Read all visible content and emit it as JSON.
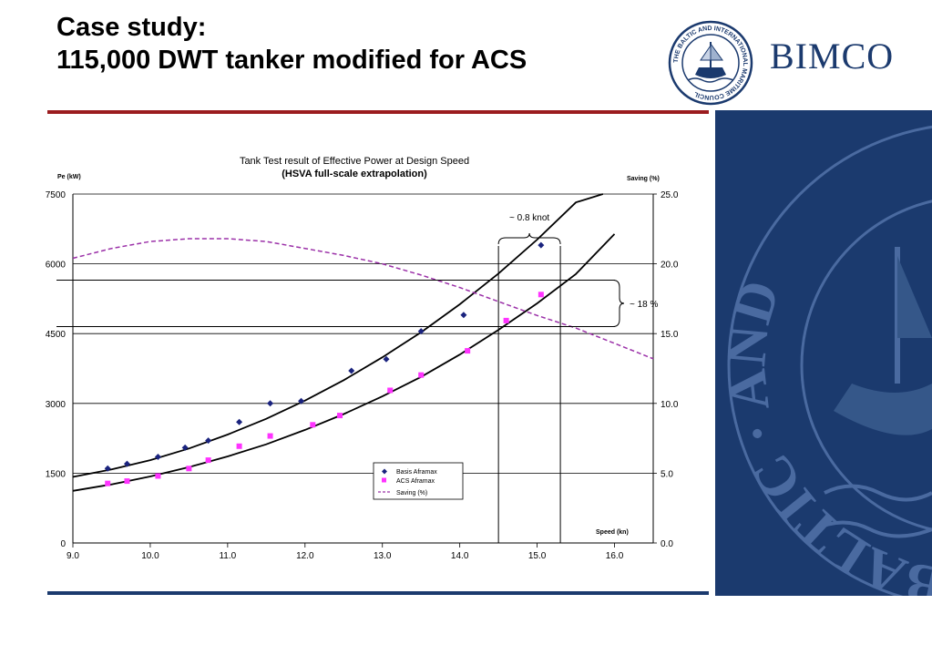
{
  "slide": {
    "title_line1": "Case study:",
    "title_line2": "115,000 DWT tanker modified for ACS"
  },
  "logo": {
    "text": "BIMCO",
    "seal_text": "THE BALTIC AND INTERNATIONAL MARITIME COUNCIL"
  },
  "side_panel": {
    "watermark_text": "THE · BALTIC · AND"
  },
  "colors": {
    "title_rule": "#9b1c1f",
    "brand_navy": "#1b3a6e",
    "basis_marker": "#1a237e",
    "acs_marker": "#ff33ff",
    "saving_line": "#9b30a8"
  },
  "chart_data": {
    "type": "line",
    "title": "Tank Test result of Effective Power at Design Speed",
    "subtitle": "(HSVA full-scale extrapolation)",
    "xlabel": "Speed (kn)",
    "ylabel_left": "Pe (kW)",
    "ylabel_right": "Saving (%)",
    "xlim": [
      9.0,
      16.5
    ],
    "ylim_left": [
      0,
      7500
    ],
    "ylim_right": [
      0,
      25
    ],
    "x_ticks": [
      9.0,
      10.0,
      11.0,
      12.0,
      13.0,
      14.0,
      15.0,
      16.0
    ],
    "x_tick_labels": [
      "9.0",
      "10.0",
      "11.0",
      "12.0",
      "13.0",
      "14.0",
      "15.0",
      "16.0"
    ],
    "y_left_ticks": [
      0,
      1500,
      3000,
      4500,
      6000,
      7500
    ],
    "y_left_tick_labels": [
      "0",
      "1500",
      "3000",
      "4500",
      "6000",
      "7500"
    ],
    "y_right_ticks": [
      0,
      5,
      10,
      15,
      20,
      25
    ],
    "y_right_tick_labels": [
      "0.0",
      "5.0",
      "10.0",
      "15.0",
      "20.0",
      "25.0"
    ],
    "grid": "horizontal",
    "legend_position": "bottom-center",
    "series": [
      {
        "name": "Basis Aframax",
        "kind": "scatter",
        "marker": "diamond",
        "axis": "left",
        "x": [
          9.45,
          9.7,
          10.1,
          10.45,
          10.75,
          11.15,
          11.55,
          11.95,
          12.6,
          13.05,
          13.5,
          14.05,
          15.05
        ],
        "y": [
          1600,
          1700,
          1850,
          2050,
          2200,
          2600,
          3000,
          3050,
          3700,
          3950,
          4550,
          4900,
          6400
        ]
      },
      {
        "name": "ACS Aframax",
        "kind": "scatter",
        "marker": "square",
        "axis": "left",
        "x": [
          9.45,
          9.7,
          10.1,
          10.5,
          10.75,
          11.15,
          11.55,
          12.1,
          12.45,
          13.1,
          13.5,
          14.1,
          14.6,
          15.05
        ],
        "y": [
          1280,
          1330,
          1440,
          1600,
          1780,
          2080,
          2300,
          2540,
          2740,
          3280,
          3610,
          4130,
          4780,
          5340
        ]
      },
      {
        "name": "",
        "kind": "fit",
        "axis": "left",
        "x": [
          9.0,
          9.5,
          10.0,
          10.5,
          11.0,
          11.5,
          12.0,
          12.5,
          13.0,
          13.5,
          14.0,
          14.5,
          15.0,
          15.5,
          15.85
        ],
        "y": [
          1420,
          1580,
          1780,
          2030,
          2330,
          2670,
          3060,
          3500,
          3990,
          4530,
          5130,
          5790,
          6520,
          7320,
          7500
        ]
      },
      {
        "name": "",
        "kind": "fit",
        "axis": "left",
        "x": [
          9.0,
          9.5,
          10.0,
          10.5,
          11.0,
          11.5,
          12.0,
          12.5,
          13.0,
          13.5,
          14.0,
          14.5,
          15.0,
          15.5,
          16.0
        ],
        "y": [
          1120,
          1260,
          1430,
          1630,
          1860,
          2120,
          2430,
          2770,
          3150,
          3570,
          4050,
          4580,
          5150,
          5780,
          6640
        ]
      },
      {
        "name": "Saving (%)",
        "kind": "line",
        "style": "dashed",
        "axis": "right",
        "x": [
          9.0,
          9.5,
          10.0,
          10.5,
          11.0,
          11.5,
          12.0,
          12.5,
          13.0,
          13.5,
          14.0,
          14.5,
          15.0,
          15.5,
          16.0,
          16.5
        ],
        "y": [
          20.4,
          21.1,
          21.6,
          21.8,
          21.8,
          21.6,
          21.1,
          20.6,
          20.0,
          19.2,
          18.3,
          17.3,
          16.3,
          15.4,
          14.3,
          13.2
        ]
      }
    ],
    "annotations": [
      {
        "text": "~ 0.8 knot",
        "x_from": 14.5,
        "x_to": 15.3
      },
      {
        "text": "~ 18 %",
        "y_from": 4650,
        "y_to": 5650
      }
    ]
  }
}
